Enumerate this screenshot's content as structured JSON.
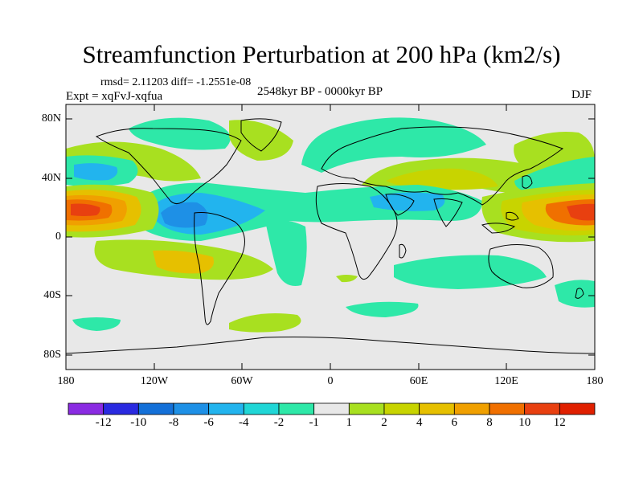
{
  "title": "Streamfunction Perturbation at 200 hPa (km2/s)",
  "stats_line": "rmsd= 2.11203 diff= -1.2551e-08",
  "experiment": "Expt = xqFvJ-xqfua",
  "period": "2548kyr BP - 0000kyr BP",
  "season": "DJF",
  "axes": {
    "lat_labels": [
      "80N",
      "40N",
      "0",
      "40S",
      "80S"
    ],
    "lon_labels": [
      "180",
      "120W",
      "60W",
      "0",
      "60E",
      "120E",
      "180"
    ]
  },
  "colorbar": {
    "labels": [
      "-12",
      "-10",
      "-8",
      "-6",
      "-4",
      "-2",
      "-1",
      "1",
      "2",
      "4",
      "6",
      "8",
      "10",
      "12"
    ],
    "colors": [
      "#8a2be2",
      "#2a2ae0",
      "#1470d8",
      "#1e90e6",
      "#22b4ee",
      "#20d6d6",
      "#2ee8a8",
      "#e8e8e8",
      "#a8e020",
      "#c8d400",
      "#e6c000",
      "#f0a000",
      "#f07000",
      "#e84010",
      "#e02000"
    ]
  },
  "colors": {
    "ocean_background": "#e8e8e8",
    "coastline": "#000000"
  }
}
